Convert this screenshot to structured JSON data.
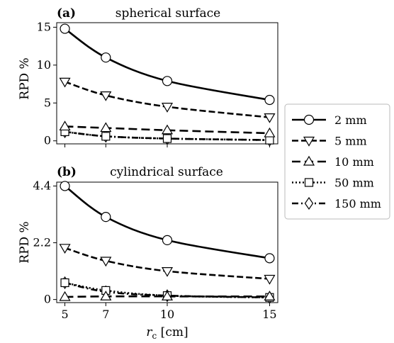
{
  "chart_data": [
    {
      "type": "line",
      "panel_label": "(a)",
      "title": "spherical surface",
      "xlabel": "",
      "ylabel": "RPD %",
      "x": [
        5,
        7,
        10,
        15
      ],
      "xlim": [
        4.6,
        15.4
      ],
      "ylim": [
        -0.4,
        15.6
      ],
      "yticks": [
        0,
        5,
        10,
        15
      ],
      "yticklabels": [
        "0",
        "5",
        "10",
        "15"
      ],
      "series": [
        {
          "name": "2 mm",
          "values": [
            14.8,
            11.0,
            7.9,
            5.4
          ],
          "linestyle": "solid",
          "marker": "circle"
        },
        {
          "name": "5 mm",
          "values": [
            7.8,
            6.0,
            4.5,
            3.1
          ],
          "linestyle": "dashed",
          "marker": "triangle-down"
        },
        {
          "name": "10 mm",
          "values": [
            1.9,
            1.7,
            1.4,
            1.0
          ],
          "linestyle": "long-dashed",
          "marker": "triangle-up"
        },
        {
          "name": "50 mm",
          "values": [
            1.2,
            0.6,
            0.3,
            0.1
          ],
          "linestyle": "dotted",
          "marker": "square"
        },
        {
          "name": "150 mm",
          "values": [
            1.2,
            0.6,
            0.3,
            0.1
          ],
          "linestyle": "dash-dot",
          "marker": "diamond"
        }
      ]
    },
    {
      "type": "line",
      "panel_label": "(b)",
      "title": "cylindrical surface",
      "xlabel": "r_c [cm]",
      "ylabel": "RPD %",
      "x": [
        5,
        7,
        10,
        15
      ],
      "xlim": [
        4.6,
        15.4
      ],
      "ylim": [
        -0.12,
        4.55
      ],
      "xticks": [
        5,
        7,
        10,
        15
      ],
      "xticklabels": [
        "5",
        "7",
        "10",
        "15"
      ],
      "yticks": [
        0,
        2.2,
        4.4
      ],
      "yticklabels": [
        "0",
        "2.2",
        "4.4"
      ],
      "series": [
        {
          "name": "2 mm",
          "values": [
            4.4,
            3.2,
            2.3,
            1.6
          ],
          "linestyle": "solid",
          "marker": "circle"
        },
        {
          "name": "5 mm",
          "values": [
            2.0,
            1.5,
            1.1,
            0.8
          ],
          "linestyle": "dashed",
          "marker": "triangle-down"
        },
        {
          "name": "10 mm",
          "values": [
            0.1,
            0.12,
            0.12,
            0.12
          ],
          "linestyle": "long-dashed",
          "marker": "triangle-up"
        },
        {
          "name": "50 mm",
          "values": [
            0.65,
            0.35,
            0.15,
            0.08
          ],
          "linestyle": "dotted",
          "marker": "square"
        },
        {
          "name": "150 mm",
          "values": [
            0.65,
            0.3,
            0.15,
            0.08
          ],
          "linestyle": "dash-dot",
          "marker": "diamond"
        }
      ]
    }
  ],
  "legend": {
    "placement": "right",
    "entries": [
      "2 mm",
      "5 mm",
      "10 mm",
      "50 mm",
      "150 mm"
    ]
  }
}
